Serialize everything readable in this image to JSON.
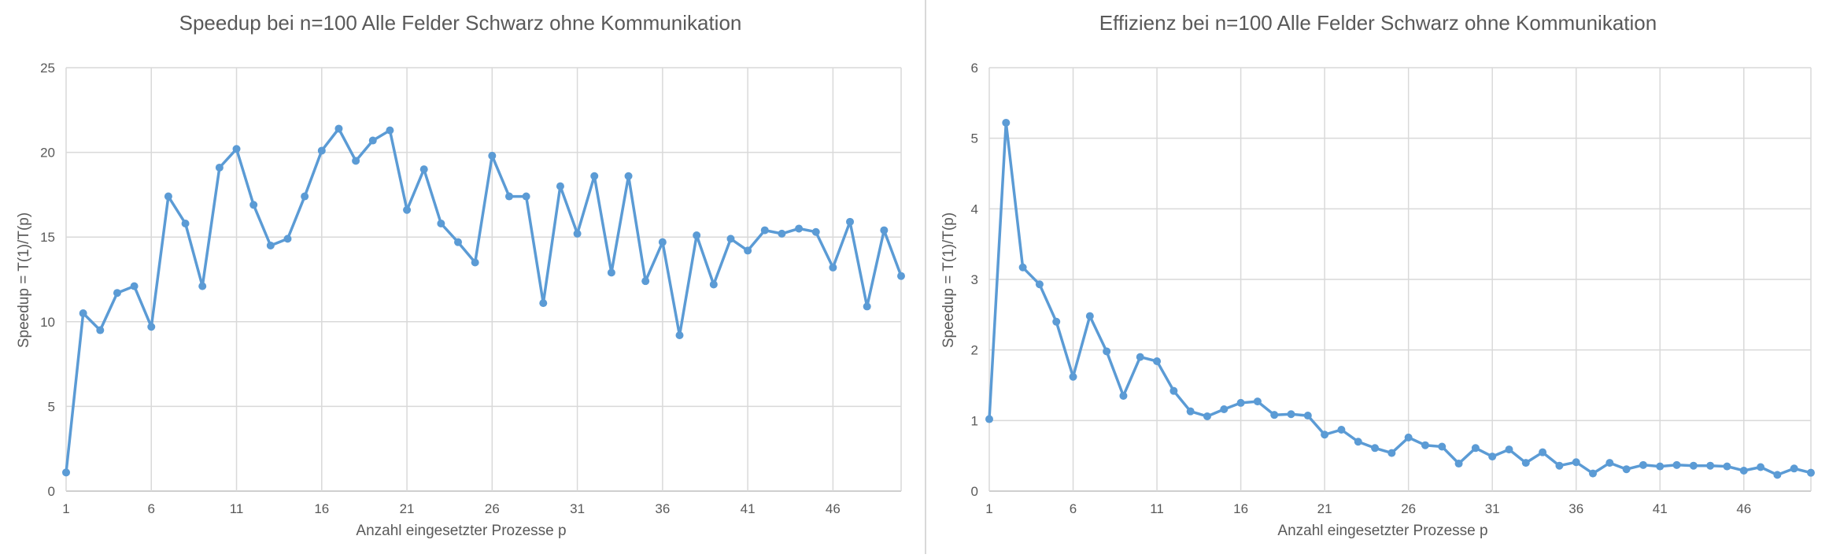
{
  "chart_data": [
    {
      "type": "line",
      "title": "Speedup bei n=100 Alle Felder Schwarz ohne Kommunikation",
      "xlabel": "Anzahl eingesetzter Prozesse p",
      "ylabel": "Speedup = T(1)/T(p)",
      "x": [
        1,
        2,
        3,
        4,
        5,
        6,
        7,
        8,
        9,
        10,
        11,
        12,
        13,
        14,
        15,
        16,
        17,
        18,
        19,
        20,
        21,
        22,
        23,
        24,
        25,
        26,
        27,
        28,
        29,
        30,
        31,
        32,
        33,
        34,
        35,
        36,
        37,
        38,
        39,
        40,
        41,
        42,
        43,
        44,
        45,
        46,
        47,
        48,
        49,
        50
      ],
      "series": [
        {
          "values": [
            1.1,
            10.5,
            9.5,
            11.7,
            12.1,
            9.7,
            17.4,
            15.8,
            12.1,
            19.1,
            20.2,
            16.9,
            14.5,
            14.9,
            17.4,
            20.1,
            21.4,
            19.5,
            20.7,
            21.3,
            16.6,
            19.0,
            15.8,
            14.7,
            13.5,
            19.8,
            17.4,
            17.4,
            11.1,
            18.0,
            15.2,
            18.6,
            12.9,
            18.6,
            12.4,
            14.7,
            9.2,
            15.1,
            12.2,
            14.9,
            14.2,
            15.4,
            15.2,
            15.5,
            15.3,
            13.2,
            15.9,
            10.9,
            15.4,
            12.7
          ],
          "color": "#5b9bd5"
        }
      ],
      "ylim": [
        0,
        25
      ],
      "yticks": [
        0,
        5,
        10,
        15,
        20,
        25
      ],
      "xtick_labels": [
        1,
        6,
        11,
        16,
        21,
        26,
        31,
        36,
        41,
        46
      ],
      "grid": true,
      "legend": "none"
    },
    {
      "type": "line",
      "title": "Effizienz bei n=100 Alle Felder Schwarz ohne Kommunikation",
      "xlabel": "Anzahl eingesetzter Prozesse p",
      "ylabel": "Speedup = T(1)/T(p)",
      "x": [
        1,
        2,
        3,
        4,
        5,
        6,
        7,
        8,
        9,
        10,
        11,
        12,
        13,
        14,
        15,
        16,
        17,
        18,
        19,
        20,
        21,
        22,
        23,
        24,
        25,
        26,
        27,
        28,
        29,
        30,
        31,
        32,
        33,
        34,
        35,
        36,
        37,
        38,
        39,
        40,
        41,
        42,
        43,
        44,
        45,
        46,
        47,
        48,
        49,
        50
      ],
      "series": [
        {
          "values": [
            1.02,
            5.22,
            3.17,
            2.93,
            2.4,
            1.62,
            2.48,
            1.98,
            1.35,
            1.9,
            1.84,
            1.42,
            1.13,
            1.06,
            1.16,
            1.25,
            1.27,
            1.08,
            1.09,
            1.07,
            0.8,
            0.87,
            0.7,
            0.61,
            0.54,
            0.76,
            0.65,
            0.63,
            0.39,
            0.61,
            0.49,
            0.59,
            0.4,
            0.55,
            0.36,
            0.41,
            0.25,
            0.4,
            0.31,
            0.37,
            0.35,
            0.37,
            0.36,
            0.36,
            0.35,
            0.29,
            0.34,
            0.23,
            0.32,
            0.26
          ],
          "color": "#5b9bd5"
        }
      ],
      "ylim": [
        0,
        6
      ],
      "yticks": [
        0,
        1,
        2,
        3,
        4,
        5,
        6
      ],
      "xtick_labels": [
        1,
        6,
        11,
        16,
        21,
        26,
        31,
        36,
        41,
        46
      ],
      "grid": true,
      "legend": "none"
    }
  ]
}
